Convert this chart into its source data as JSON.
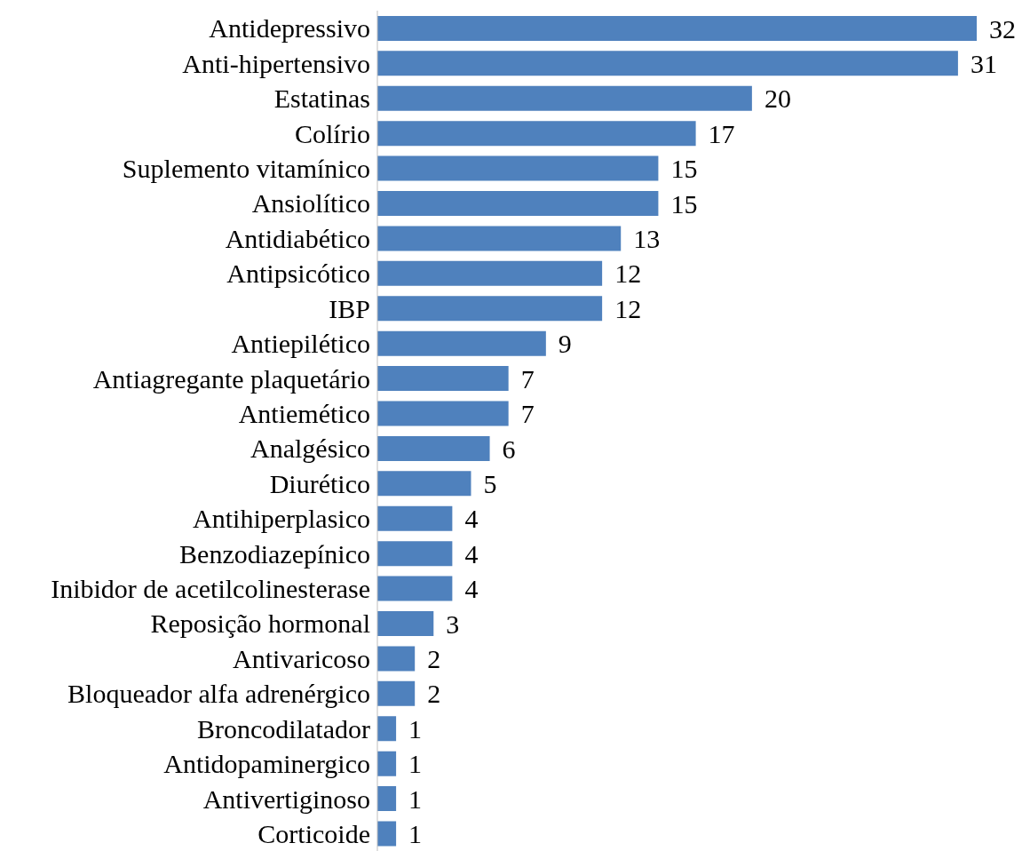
{
  "chart_data": {
    "type": "bar",
    "orientation": "horizontal",
    "categories": [
      "Antidepressivo",
      "Anti-hipertensivo",
      "Estatinas",
      "Colírio",
      "Suplemento vitamínico",
      "Ansiolítico",
      "Antidiabético",
      "Antipsicótico",
      "IBP",
      "Antiepilético",
      "Antiagregante plaquetário",
      "Antiemético",
      "Analgésico",
      "Diurético",
      "Antihiperplasico",
      "Benzodiazepínico",
      "Inibidor de acetilcolinesterase",
      "Reposição hormonal",
      "Antivaricoso",
      "Bloqueador alfa adrenérgico",
      "Broncodilatador",
      "Antidopaminergico",
      "Antivertiginoso",
      "Corticoide"
    ],
    "values": [
      32,
      31,
      20,
      17,
      15,
      15,
      13,
      12,
      12,
      9,
      7,
      7,
      6,
      5,
      4,
      4,
      4,
      3,
      2,
      2,
      1,
      1,
      1,
      1
    ],
    "color": "#4f81bd",
    "data_labels": true
  }
}
